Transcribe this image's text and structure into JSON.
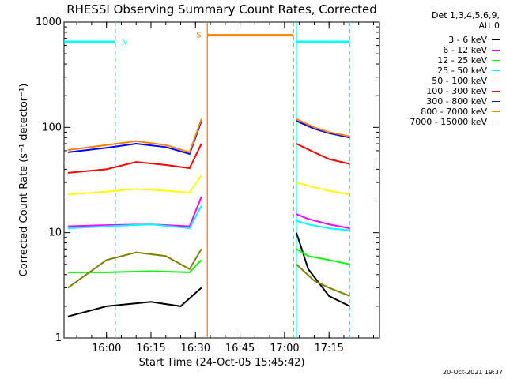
{
  "chart_data": {
    "type": "line",
    "title": "RHESSI Observing Summary Count Rates, Corrected",
    "xlabel": "Start Time (24-Oct-05 15:45:42)",
    "ylabel": "Corrected Count Rate (s⁻¹ detector⁻¹)",
    "yscale": "log",
    "ylim": [
      1,
      1000
    ],
    "xlim": [
      "15:45:42",
      "17:32:00"
    ],
    "x_ticks": [
      "16:00",
      "16:15",
      "16:30",
      "16:45",
      "17:00",
      "17:15"
    ],
    "y_ticks": [
      "1",
      "10",
      "100",
      "1000"
    ],
    "grid": false,
    "legend_position": "top-right",
    "legend_header": [
      "Det 1,3,4,5,6,9,",
      "Att 0"
    ],
    "series": [
      {
        "name": "3 - 6 keV",
        "color": "#000000",
        "points": [
          [
            "15:47",
            1.6
          ],
          [
            "16:00",
            2.0
          ],
          [
            "16:15",
            2.2
          ],
          [
            "16:25",
            2.0
          ],
          [
            "16:32",
            3.0
          ],
          [
            "17:04",
            10.0
          ],
          [
            "17:08",
            4.5
          ],
          [
            "17:15",
            2.5
          ],
          [
            "17:22",
            2.0
          ]
        ]
      },
      {
        "name": "6 - 12 keV",
        "color": "#ff00ff",
        "points": [
          [
            "15:47",
            11.5
          ],
          [
            "16:00",
            11.8
          ],
          [
            "16:15",
            12.0
          ],
          [
            "16:28",
            11.5
          ],
          [
            "16:32",
            22.0
          ],
          [
            "17:04",
            15.0
          ],
          [
            "17:08",
            13.5
          ],
          [
            "17:15",
            12.0
          ],
          [
            "17:22",
            11.0
          ]
        ]
      },
      {
        "name": "12 - 25 keV",
        "color": "#00ff00",
        "points": [
          [
            "15:47",
            4.2
          ],
          [
            "16:00",
            4.2
          ],
          [
            "16:15",
            4.3
          ],
          [
            "16:28",
            4.2
          ],
          [
            "16:32",
            5.5
          ],
          [
            "17:04",
            7.0
          ],
          [
            "17:08",
            6.0
          ],
          [
            "17:15",
            5.5
          ],
          [
            "17:22",
            5.0
          ]
        ]
      },
      {
        "name": "25 - 50 keV",
        "color": "#00ffff",
        "points": [
          [
            "15:47",
            11.0
          ],
          [
            "16:00",
            11.5
          ],
          [
            "16:15",
            12.0
          ],
          [
            "16:28",
            11.0
          ],
          [
            "16:32",
            18.0
          ],
          [
            "17:04",
            13.0
          ],
          [
            "17:08",
            12.0
          ],
          [
            "17:15",
            11.0
          ],
          [
            "17:22",
            10.5
          ]
        ]
      },
      {
        "name": "50 - 100 keV",
        "color": "#ffff00",
        "points": [
          [
            "15:47",
            23.0
          ],
          [
            "16:00",
            24.5
          ],
          [
            "16:10",
            26.0
          ],
          [
            "16:20",
            25.0
          ],
          [
            "16:28",
            24.0
          ],
          [
            "16:32",
            35.0
          ],
          [
            "17:04",
            30.0
          ],
          [
            "17:10",
            27.0
          ],
          [
            "17:15",
            25.0
          ],
          [
            "17:22",
            23.0
          ]
        ]
      },
      {
        "name": "100 - 300 keV",
        "color": "#ff0000",
        "points": [
          [
            "15:47",
            37.0
          ],
          [
            "16:00",
            40.0
          ],
          [
            "16:10",
            47.0
          ],
          [
            "16:20",
            44.0
          ],
          [
            "16:28",
            41.0
          ],
          [
            "16:32",
            70.0
          ],
          [
            "17:04",
            70.0
          ],
          [
            "17:10",
            58.0
          ],
          [
            "17:15",
            50.0
          ],
          [
            "17:22",
            45.0
          ]
        ]
      },
      {
        "name": "300 - 800 keV",
        "color": "#0000ff",
        "points": [
          [
            "15:47",
            58.0
          ],
          [
            "16:00",
            64.0
          ],
          [
            "16:10",
            70.0
          ],
          [
            "16:20",
            65.0
          ],
          [
            "16:28",
            56.0
          ],
          [
            "16:32",
            115.0
          ],
          [
            "17:04",
            115.0
          ],
          [
            "17:10",
            97.0
          ],
          [
            "17:15",
            88.0
          ],
          [
            "17:22",
            80.0
          ]
        ]
      },
      {
        "name": "800 - 7000 keV",
        "color": "#ff8000",
        "points": [
          [
            "15:47",
            61.0
          ],
          [
            "16:00",
            68.0
          ],
          [
            "16:10",
            74.0
          ],
          [
            "16:20",
            68.0
          ],
          [
            "16:28",
            58.0
          ],
          [
            "16:32",
            120.0
          ],
          [
            "17:04",
            120.0
          ],
          [
            "17:10",
            100.0
          ],
          [
            "17:15",
            90.0
          ],
          [
            "17:22",
            82.0
          ]
        ]
      },
      {
        "name": "7000 - 15000 keV",
        "color": "#808000",
        "points": [
          [
            "15:47",
            3.0
          ],
          [
            "16:00",
            5.5
          ],
          [
            "16:10",
            6.5
          ],
          [
            "16:20",
            6.0
          ],
          [
            "16:28",
            4.5
          ],
          [
            "16:32",
            7.0
          ],
          [
            "17:04",
            5.0
          ],
          [
            "17:10",
            3.5
          ],
          [
            "17:15",
            3.0
          ],
          [
            "17:22",
            2.5
          ]
        ]
      }
    ],
    "annotations": {
      "night_bars": [
        {
          "label": "N",
          "start": "15:45:42",
          "end": "16:03",
          "color": "#00ffff",
          "level": 650
        },
        {
          "label": "",
          "start": "17:04",
          "end": "17:22",
          "color": "#00ffff",
          "level": 650
        }
      ],
      "saa_bar": {
        "label": "S",
        "start": "16:34",
        "end": "17:03",
        "color": "#ff8000",
        "level": 750
      },
      "vertical_lines": [
        {
          "time": "16:03",
          "color": "#00ffff",
          "style": "dashed"
        },
        {
          "time": "16:34",
          "color": "#ff8000",
          "style": "solid"
        },
        {
          "time": "17:03",
          "color": "#ff8000",
          "style": "dashed"
        },
        {
          "time": "17:04",
          "color": "#00ffff",
          "style": "solid"
        },
        {
          "time": "17:22",
          "color": "#00ffff",
          "style": "dashed"
        }
      ],
      "data_gap": [
        "16:32",
        "17:04"
      ]
    }
  },
  "footer": {
    "timestamp": "20-Oct-2021 19:37"
  }
}
